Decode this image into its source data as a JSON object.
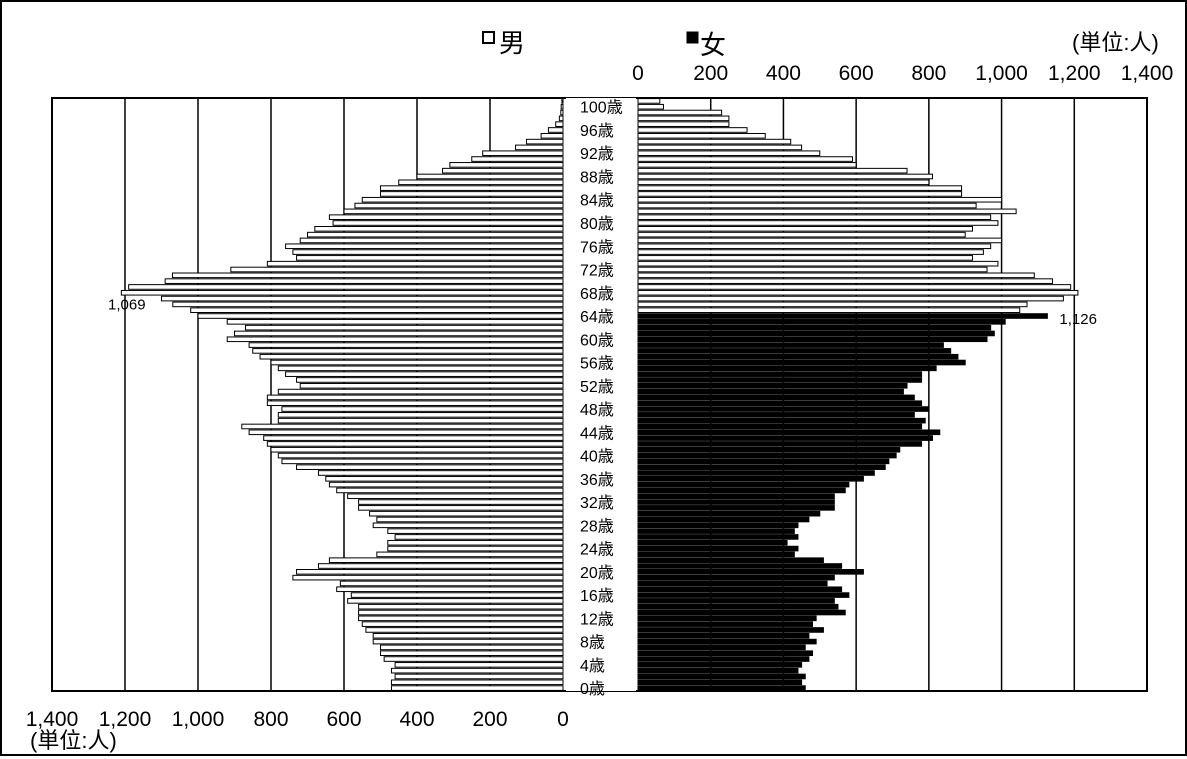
{
  "chart_data": {
    "type": "bar",
    "orientation": "population-pyramid",
    "unit_label": "(単位:人)",
    "legend": [
      {
        "name": "男",
        "fill": "#ffffff"
      },
      {
        "name": "女",
        "fill": "#000000"
      }
    ],
    "xlim": [
      0,
      1400
    ],
    "left_ticks": [
      "1,400",
      "1,200",
      "1,000",
      "800",
      "600",
      "400",
      "200",
      "0"
    ],
    "right_ticks": [
      "0",
      "200",
      "400",
      "600",
      "800",
      "1,000",
      "1,200",
      "1,400"
    ],
    "y_tick_labels": [
      "0歳",
      "4歳",
      "8歳",
      "12歳",
      "16歳",
      "20歳",
      "24歳",
      "28歳",
      "32歳",
      "36歳",
      "40歳",
      "44歳",
      "48歳",
      "52歳",
      "56歳",
      "60歳",
      "64歳",
      "68歳",
      "72歳",
      "76歳",
      "80歳",
      "84歳",
      "88歳",
      "92歳",
      "96歳",
      "100歳"
    ],
    "ages": [
      0,
      1,
      2,
      3,
      4,
      5,
      6,
      7,
      8,
      9,
      10,
      11,
      12,
      13,
      14,
      15,
      16,
      17,
      18,
      19,
      20,
      21,
      22,
      23,
      24,
      25,
      26,
      27,
      28,
      29,
      30,
      31,
      32,
      33,
      34,
      35,
      36,
      37,
      38,
      39,
      40,
      41,
      42,
      43,
      44,
      45,
      46,
      47,
      48,
      49,
      50,
      51,
      52,
      53,
      54,
      55,
      56,
      57,
      58,
      59,
      60,
      61,
      62,
      63,
      64,
      65,
      66,
      67,
      68,
      69,
      70,
      71,
      72,
      73,
      74,
      75,
      76,
      77,
      78,
      79,
      80,
      81,
      82,
      83,
      84,
      85,
      86,
      87,
      88,
      89,
      90,
      91,
      92,
      93,
      94,
      95,
      96,
      97,
      98,
      99,
      100,
      101
    ],
    "series": [
      {
        "name": "男",
        "values": [
          470,
          470,
          460,
          470,
          460,
          490,
          500,
          500,
          520,
          520,
          540,
          550,
          560,
          560,
          560,
          590,
          580,
          620,
          610,
          740,
          730,
          670,
          640,
          510,
          480,
          480,
          460,
          480,
          520,
          510,
          530,
          560,
          560,
          590,
          620,
          640,
          650,
          670,
          730,
          770,
          780,
          800,
          810,
          820,
          860,
          880,
          780,
          780,
          770,
          810,
          810,
          780,
          720,
          730,
          760,
          780,
          800,
          830,
          850,
          860,
          920,
          900,
          870,
          920,
          1000,
          1020,
          1069,
          1100,
          1210,
          1190,
          1090,
          1070,
          910,
          810,
          730,
          740,
          760,
          720,
          700,
          680,
          630,
          640,
          600,
          570,
          550,
          500,
          500,
          450,
          400,
          330,
          310,
          250,
          220,
          130,
          100,
          60,
          40,
          20,
          10,
          6,
          5,
          3
        ]
      },
      {
        "name": "女",
        "values": [
          460,
          450,
          460,
          440,
          450,
          470,
          480,
          460,
          490,
          470,
          510,
          480,
          490,
          570,
          550,
          540,
          580,
          560,
          520,
          540,
          620,
          560,
          510,
          430,
          440,
          410,
          440,
          430,
          440,
          470,
          500,
          540,
          540,
          540,
          570,
          580,
          620,
          650,
          680,
          690,
          710,
          720,
          780,
          810,
          830,
          780,
          790,
          760,
          800,
          780,
          760,
          730,
          740,
          780,
          780,
          820,
          900,
          880,
          860,
          840,
          960,
          980,
          970,
          1010,
          1126,
          1050,
          1070,
          1170,
          1210,
          1190,
          1140,
          1090,
          960,
          990,
          920,
          950,
          970,
          1000,
          900,
          920,
          990,
          970,
          1040,
          930,
          1000,
          890,
          890,
          800,
          810,
          740,
          600,
          590,
          500,
          450,
          420,
          350,
          300,
          250,
          250,
          230,
          70,
          60
        ]
      }
    ],
    "annotations": [
      {
        "series": "男",
        "age": 66,
        "text": "1,069"
      },
      {
        "series": "女",
        "age": 64,
        "text": "1,126"
      }
    ]
  }
}
